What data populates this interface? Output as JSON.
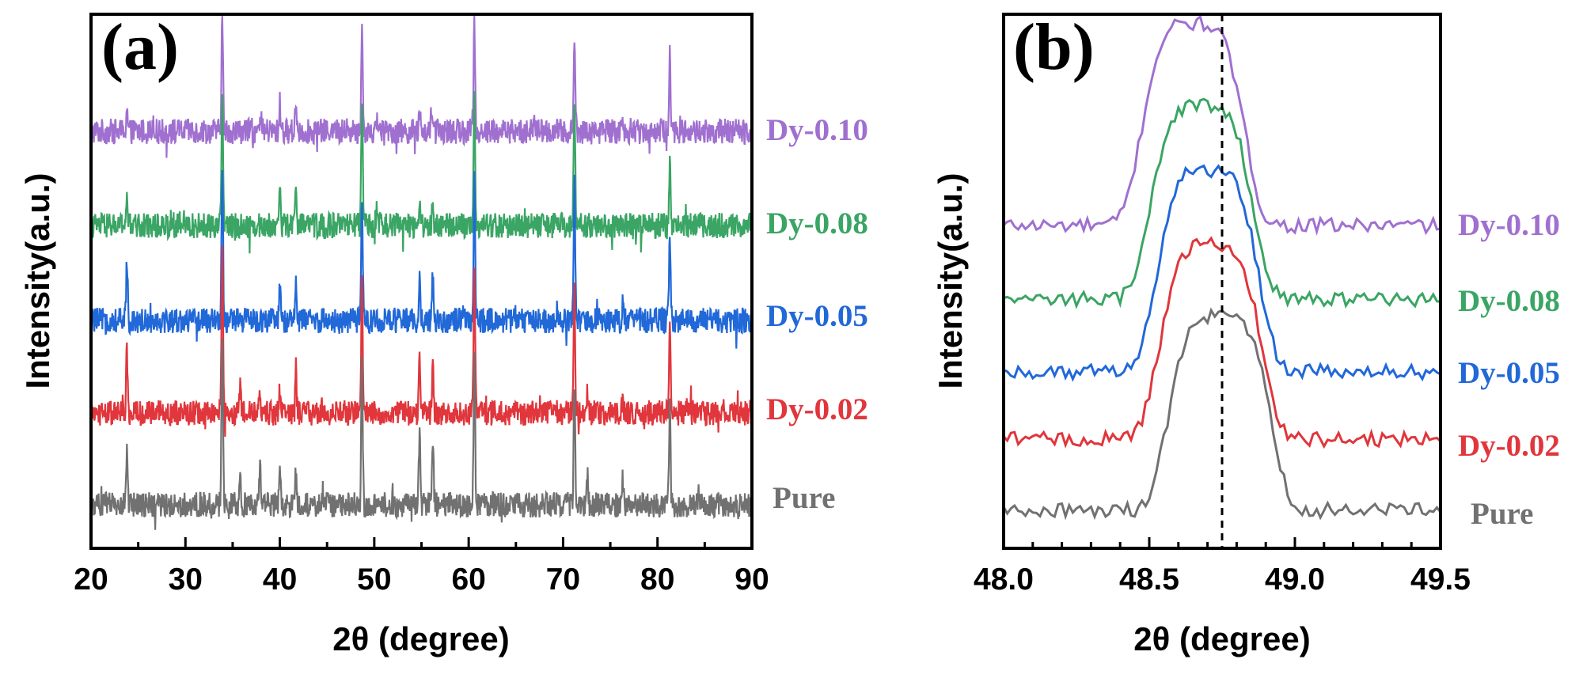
{
  "chart_data": [
    {
      "type": "line",
      "panel_label": "(a)",
      "title": "",
      "xlabel": "2θ (degree)",
      "ylabel": "Intensity(a.u.)",
      "xlim": [
        20,
        90
      ],
      "xticks": [
        "20",
        "30",
        "40",
        "50",
        "60",
        "70",
        "80",
        "90"
      ],
      "series": [
        {
          "name": "Dy-0.10",
          "color": "#a070d0",
          "offset": 4,
          "peaks": [
            [
              23.8,
              0.3
            ],
            [
              26.6,
              0.15
            ],
            [
              33.9,
              1.5
            ],
            [
              38.0,
              0.12
            ],
            [
              40.0,
              0.35
            ],
            [
              41.7,
              0.4
            ],
            [
              45.5,
              0.12
            ],
            [
              48.7,
              1.3
            ],
            [
              50.4,
              0.15
            ],
            [
              54.8,
              0.2
            ],
            [
              56.2,
              0.2
            ],
            [
              60.6,
              1.4
            ],
            [
              67.0,
              0.12
            ],
            [
              71.2,
              1.2
            ],
            [
              76.2,
              0.1
            ],
            [
              81.3,
              1.0
            ]
          ]
        },
        {
          "name": "Dy-0.08",
          "color": "#3aa564",
          "offset": 3,
          "peaks": [
            [
              23.8,
              0.4
            ],
            [
              33.9,
              1.8
            ],
            [
              40.0,
              0.5
            ],
            [
              41.7,
              0.6
            ],
            [
              48.7,
              1.6
            ],
            [
              50.3,
              0.2
            ],
            [
              54.8,
              0.3
            ],
            [
              56.2,
              0.3
            ],
            [
              60.6,
              1.8
            ],
            [
              71.2,
              1.6
            ],
            [
              81.3,
              0.8
            ]
          ]
        },
        {
          "name": "Dy-0.05",
          "color": "#2168d8",
          "offset": 2,
          "peaks": [
            [
              23.8,
              0.8
            ],
            [
              33.9,
              2.0
            ],
            [
              40.0,
              0.4
            ],
            [
              41.7,
              0.5
            ],
            [
              48.7,
              1.6
            ],
            [
              54.8,
              0.6
            ],
            [
              56.2,
              0.6
            ],
            [
              60.6,
              1.8
            ],
            [
              71.2,
              1.8
            ],
            [
              76.3,
              0.2
            ],
            [
              81.3,
              1.2
            ]
          ]
        },
        {
          "name": "Dy-0.02",
          "color": "#e0363c",
          "offset": 1,
          "peaks": [
            [
              23.8,
              0.8
            ],
            [
              33.9,
              2.0
            ],
            [
              35.8,
              0.3
            ],
            [
              37.9,
              0.25
            ],
            [
              40.0,
              0.3
            ],
            [
              41.7,
              0.5
            ],
            [
              48.7,
              1.7
            ],
            [
              54.8,
              0.75
            ],
            [
              56.2,
              0.75
            ],
            [
              60.6,
              1.8
            ],
            [
              71.2,
              1.6
            ],
            [
              72.6,
              0.3
            ],
            [
              76.3,
              0.2
            ],
            [
              81.3,
              1.0
            ]
          ]
        },
        {
          "name": "Pure",
          "color": "#717171",
          "offset": 0,
          "peaks": [
            [
              23.8,
              0.7
            ],
            [
              33.9,
              2.2
            ],
            [
              35.8,
              0.35
            ],
            [
              37.9,
              0.45
            ],
            [
              40.0,
              0.35
            ],
            [
              41.7,
              0.4
            ],
            [
              48.7,
              1.8
            ],
            [
              54.8,
              0.85
            ],
            [
              56.2,
              0.85
            ],
            [
              60.6,
              2.0
            ],
            [
              71.2,
              1.6
            ],
            [
              72.6,
              0.35
            ],
            [
              76.3,
              0.3
            ],
            [
              81.3,
              1.2
            ]
          ]
        }
      ]
    },
    {
      "type": "line",
      "panel_label": "(b)",
      "title": "",
      "xlabel": "2θ (degree)",
      "ylabel": "Intensity(a.u.)",
      "xlim": [
        48.0,
        49.5
      ],
      "xticks": [
        "48.0",
        "48.5",
        "49.0",
        "49.5"
      ],
      "reference_line_x": 48.75,
      "series": [
        {
          "name": "Dy-0.10",
          "color": "#a070d0",
          "offset": 3.4,
          "peak_center": 48.65,
          "peak_height": 2.5
        },
        {
          "name": "Dy-0.08",
          "color": "#3aa564",
          "offset": 2.5,
          "peak_center": 48.68,
          "peak_height": 2.4
        },
        {
          "name": "Dy-0.05",
          "color": "#2168d8",
          "offset": 1.6,
          "peak_center": 48.7,
          "peak_height": 2.5
        },
        {
          "name": "Dy-0.02",
          "color": "#e0363c",
          "offset": 0.8,
          "peak_center": 48.71,
          "peak_height": 2.4
        },
        {
          "name": "Pure",
          "color": "#717171",
          "offset": 0,
          "peak_center": 48.74,
          "peak_height": 2.4
        }
      ]
    }
  ]
}
